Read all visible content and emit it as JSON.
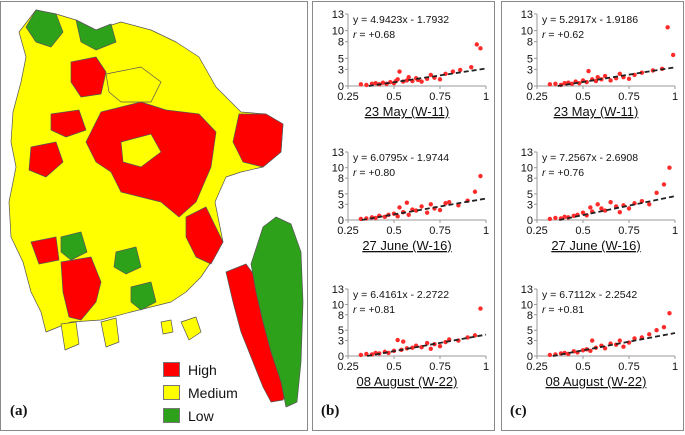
{
  "panels": {
    "a": "(a)",
    "b": "(b)",
    "c": "(c)"
  },
  "legend": [
    {
      "label": "High",
      "color": "#ff0000"
    },
    {
      "label": "Medium",
      "color": "#ffff00"
    },
    {
      "label": "Low",
      "color": "#2ea11b"
    }
  ],
  "colors": {
    "point": "#ff2a2a",
    "trend": "#222222",
    "border": "#555555"
  },
  "chart_data": [
    {
      "type": "scatter",
      "panel": "b",
      "title": "23 May (W-11)",
      "equation": "y = 4.9423x - 1.7932",
      "r_label": "r",
      "r_value": "= +0.68",
      "slope": 4.9423,
      "intercept": -1.7932,
      "xlim": [
        0.25,
        1
      ],
      "ylim": [
        0,
        13
      ],
      "xticks": [
        0.25,
        0.5,
        0.75,
        1
      ],
      "xtick_labels": [
        "0.25",
        "0.5",
        "0.75",
        "1"
      ],
      "yticks": [
        0,
        3,
        5,
        8,
        10,
        13
      ],
      "x": [
        0.32,
        0.35,
        0.38,
        0.4,
        0.42,
        0.44,
        0.46,
        0.48,
        0.5,
        0.51,
        0.52,
        0.53,
        0.55,
        0.57,
        0.58,
        0.6,
        0.62,
        0.63,
        0.65,
        0.68,
        0.7,
        0.72,
        0.75,
        0.78,
        0.82,
        0.86,
        0.92,
        0.95,
        0.97
      ],
      "y": [
        0.3,
        0.2,
        0.4,
        0.5,
        0.3,
        0.6,
        0.4,
        0.7,
        0.5,
        0.9,
        1.2,
        2.6,
        0.8,
        1.0,
        1.6,
        0.9,
        1.4,
        1.1,
        0.8,
        1.3,
        2.0,
        1.5,
        1.2,
        2.2,
        2.6,
        2.9,
        3.4,
        7.5,
        6.8
      ]
    },
    {
      "type": "scatter",
      "panel": "b",
      "title": "27 June (W-16)",
      "equation": "y = 6.0795x - 1.9744",
      "r_label": "r",
      "r_value": "= +0.80",
      "slope": 6.0795,
      "intercept": -1.9744,
      "xlim": [
        0.25,
        1
      ],
      "ylim": [
        0,
        13
      ],
      "xticks": [
        0.25,
        0.5,
        0.75,
        1
      ],
      "xtick_labels": [
        "0.25",
        "0.5",
        "0.75",
        "1"
      ],
      "yticks": [
        0,
        3,
        5,
        8,
        10,
        13
      ],
      "x": [
        0.32,
        0.35,
        0.38,
        0.4,
        0.42,
        0.45,
        0.47,
        0.5,
        0.52,
        0.53,
        0.55,
        0.57,
        0.58,
        0.6,
        0.62,
        0.65,
        0.68,
        0.7,
        0.72,
        0.75,
        0.78,
        0.8,
        0.85,
        0.9,
        0.94,
        0.97
      ],
      "y": [
        0.2,
        0.3,
        0.5,
        0.4,
        0.8,
        0.6,
        1.0,
        1.2,
        0.7,
        2.4,
        1.5,
        3.3,
        1.0,
        2.0,
        1.8,
        2.6,
        1.4,
        3.0,
        2.2,
        1.9,
        3.2,
        3.4,
        2.8,
        3.7,
        5.4,
        8.4
      ]
    },
    {
      "type": "scatter",
      "panel": "b",
      "title": "08 August (W-22)",
      "equation": "y = 6.4161x - 2.2722",
      "r_label": "r",
      "r_value": "= +0.81",
      "slope": 6.4161,
      "intercept": -2.2722,
      "xlim": [
        0.25,
        1
      ],
      "ylim": [
        0,
        13
      ],
      "xticks": [
        0.25,
        0.5,
        0.75,
        1
      ],
      "xtick_labels": [
        "0.25",
        "0.5",
        "0.75",
        "1"
      ],
      "yticks": [
        0,
        3,
        5,
        8,
        10,
        13
      ],
      "x": [
        0.32,
        0.35,
        0.38,
        0.4,
        0.42,
        0.45,
        0.47,
        0.5,
        0.52,
        0.54,
        0.55,
        0.57,
        0.6,
        0.62,
        0.65,
        0.68,
        0.7,
        0.72,
        0.75,
        0.78,
        0.8,
        0.85,
        0.9,
        0.94,
        0.97
      ],
      "y": [
        0.2,
        0.4,
        0.3,
        0.6,
        0.5,
        0.8,
        0.6,
        1.0,
        3.1,
        1.2,
        2.8,
        1.5,
        1.6,
        2.0,
        1.7,
        2.5,
        1.4,
        2.3,
        1.9,
        2.7,
        3.2,
        3.0,
        3.6,
        4.0,
        9.2
      ]
    },
    {
      "type": "scatter",
      "panel": "c",
      "title": "23 May (W-11)",
      "equation": "y = 5.2917x - 1.9186",
      "r_label": "r",
      "r_value": "= +0.62",
      "slope": 5.2917,
      "intercept": -1.9186,
      "xlim": [
        0.25,
        1
      ],
      "ylim": [
        0,
        13
      ],
      "xticks": [
        0.25,
        0.5,
        0.75,
        1
      ],
      "xtick_labels": [
        "0.25",
        "0.5",
        "0.75",
        "1"
      ],
      "yticks": [
        0,
        3,
        5,
        8,
        10,
        13
      ],
      "x": [
        0.32,
        0.35,
        0.38,
        0.4,
        0.42,
        0.44,
        0.46,
        0.48,
        0.5,
        0.52,
        0.53,
        0.55,
        0.57,
        0.58,
        0.6,
        0.62,
        0.65,
        0.68,
        0.7,
        0.72,
        0.75,
        0.78,
        0.82,
        0.88,
        0.93,
        0.96,
        0.99
      ],
      "y": [
        0.3,
        0.4,
        0.2,
        0.5,
        0.6,
        0.4,
        0.8,
        0.5,
        1.0,
        0.7,
        2.7,
        1.2,
        0.9,
        1.6,
        1.2,
        1.8,
        1.0,
        1.4,
        2.2,
        1.6,
        1.3,
        2.0,
        2.4,
        2.8,
        3.1,
        10.6,
        5.6
      ]
    },
    {
      "type": "scatter",
      "panel": "c",
      "title": "27 June (W-16)",
      "equation": "y = 7.2567x - 2.6908",
      "r_label": "r",
      "r_value": "= +0.76",
      "slope": 7.2567,
      "intercept": -2.6908,
      "xlim": [
        0.25,
        1
      ],
      "ylim": [
        0,
        13
      ],
      "xticks": [
        0.25,
        0.5,
        0.75,
        1
      ],
      "xtick_labels": [
        "0.25",
        "0.5",
        "0.75",
        "1"
      ],
      "yticks": [
        0,
        3,
        5,
        8,
        10,
        13
      ],
      "x": [
        0.32,
        0.35,
        0.38,
        0.4,
        0.42,
        0.45,
        0.47,
        0.5,
        0.52,
        0.54,
        0.55,
        0.58,
        0.6,
        0.62,
        0.65,
        0.68,
        0.7,
        0.72,
        0.75,
        0.78,
        0.82,
        0.86,
        0.9,
        0.94,
        0.97
      ],
      "y": [
        0.2,
        0.4,
        0.3,
        0.6,
        0.5,
        0.8,
        1.0,
        1.4,
        0.9,
        2.4,
        1.6,
        3.0,
        2.2,
        1.8,
        3.4,
        2.6,
        1.5,
        2.8,
        2.2,
        3.2,
        3.6,
        3.0,
        5.2,
        6.8,
        10.0
      ]
    },
    {
      "type": "scatter",
      "panel": "c",
      "title": "08 August (W-22)",
      "equation": "y = 6.7112x - 2.2542",
      "r_label": "r",
      "r_value": "= +0.81",
      "slope": 6.7112,
      "intercept": -2.2542,
      "xlim": [
        0.25,
        1
      ],
      "ylim": [
        0,
        13
      ],
      "xticks": [
        0.25,
        0.5,
        0.75,
        1
      ],
      "xtick_labels": [
        "0.25",
        "0.5",
        "0.75",
        "1"
      ],
      "yticks": [
        0,
        3,
        5,
        8,
        10,
        13
      ],
      "x": [
        0.32,
        0.35,
        0.38,
        0.4,
        0.42,
        0.45,
        0.47,
        0.5,
        0.52,
        0.54,
        0.55,
        0.57,
        0.6,
        0.62,
        0.65,
        0.68,
        0.7,
        0.72,
        0.75,
        0.78,
        0.82,
        0.86,
        0.9,
        0.94,
        0.97
      ],
      "y": [
        0.2,
        0.3,
        0.5,
        0.6,
        0.4,
        0.9,
        0.7,
        1.1,
        1.3,
        1.0,
        3.0,
        1.6,
        2.0,
        1.5,
        2.4,
        2.2,
        3.0,
        1.8,
        2.6,
        3.4,
        3.6,
        4.2,
        5.0,
        5.6,
        8.3
      ]
    }
  ]
}
